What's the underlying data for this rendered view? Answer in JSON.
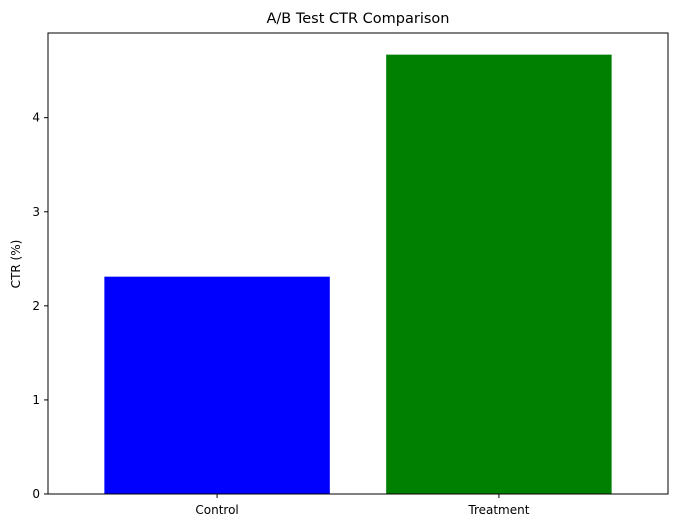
{
  "chart_data": {
    "type": "bar",
    "title": "A/B Test CTR Comparison",
    "xlabel": "",
    "ylabel": "CTR (%)",
    "categories": [
      "Control",
      "Treatment"
    ],
    "values": [
      2.31,
      4.67
    ],
    "colors": [
      "#0000ff",
      "#008000"
    ],
    "ylim": [
      0,
      4.9
    ],
    "yticks": [
      0,
      1,
      2,
      3,
      4
    ],
    "ytick_labels": [
      "0",
      "1",
      "2",
      "3",
      "4"
    ],
    "grid": false,
    "legend": "none"
  }
}
